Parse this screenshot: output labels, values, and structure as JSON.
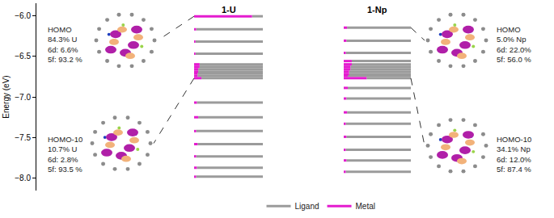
{
  "chart_data": {
    "type": "energy_level",
    "y_label": "Energy (eV)",
    "ylim": [
      -8.15,
      -5.85
    ],
    "yticks": [
      {
        "value": -6.0,
        "label": "−6.0"
      },
      {
        "value": -6.5,
        "label": "−6.5"
      },
      {
        "value": -7.0,
        "label": "−7.0"
      },
      {
        "value": -7.5,
        "label": "−7.5"
      },
      {
        "value": -8.0,
        "label": "−8.0"
      }
    ],
    "legend": "bottom",
    "series": [
      {
        "name": "Metal",
        "color": "#e41bcf"
      },
      {
        "name": "Ligand",
        "color": "#9b9b9b"
      }
    ],
    "columns": [
      {
        "name": "1-U",
        "levels": [
          {
            "energy": -6.01,
            "metal_percent": 84.3
          },
          {
            "energy": -6.17,
            "metal_percent": 3
          },
          {
            "energy": -6.32,
            "metal_percent": 2
          },
          {
            "energy": -6.47,
            "metal_percent": 2
          },
          {
            "energy": -6.6,
            "metal_percent": 8
          },
          {
            "energy": -6.63,
            "metal_percent": 8
          },
          {
            "energy": -6.66,
            "metal_percent": 6
          },
          {
            "energy": -6.69,
            "metal_percent": 6
          },
          {
            "energy": -6.71,
            "metal_percent": 5
          },
          {
            "energy": -6.74,
            "metal_percent": 5
          },
          {
            "energy": -6.77,
            "metal_percent": 10.7
          },
          {
            "energy": -7.07,
            "metal_percent": 4
          },
          {
            "energy": -7.25,
            "metal_percent": 6
          },
          {
            "energy": -7.42,
            "metal_percent": 3
          },
          {
            "energy": -7.58,
            "metal_percent": 5
          },
          {
            "energy": -7.73,
            "metal_percent": 3
          },
          {
            "energy": -7.87,
            "metal_percent": 4
          },
          {
            "energy": -7.98,
            "metal_percent": 3
          }
        ],
        "panels": [
          {
            "level": 0,
            "title": "HOMO",
            "lines": [
              "84.3% U",
              "6d: 6.6%",
              "5f: 93.2 %"
            ]
          },
          {
            "level": 10,
            "title": "HOMO-10",
            "lines": [
              "10.7% U",
              "6d: 2.8%",
              "5f: 93.5 %"
            ]
          }
        ]
      },
      {
        "name": "1-Np",
        "levels": [
          {
            "energy": -6.15,
            "metal_percent": 5.0
          },
          {
            "energy": -6.31,
            "metal_percent": 4
          },
          {
            "energy": -6.46,
            "metal_percent": 3
          },
          {
            "energy": -6.56,
            "metal_percent": 12
          },
          {
            "energy": -6.6,
            "metal_percent": 12
          },
          {
            "energy": -6.63,
            "metal_percent": 10
          },
          {
            "energy": -6.66,
            "metal_percent": 10
          },
          {
            "energy": -6.69,
            "metal_percent": 8
          },
          {
            "energy": -6.72,
            "metal_percent": 8
          },
          {
            "energy": -6.74,
            "metal_percent": 6
          },
          {
            "energy": -6.77,
            "metal_percent": 34.1
          },
          {
            "energy": -6.89,
            "metal_percent": 6
          },
          {
            "energy": -7.02,
            "metal_percent": 4
          },
          {
            "energy": -7.19,
            "metal_percent": 5
          },
          {
            "energy": -7.33,
            "metal_percent": 3
          },
          {
            "energy": -7.49,
            "metal_percent": 4
          },
          {
            "energy": -7.65,
            "metal_percent": 3
          },
          {
            "energy": -7.78,
            "metal_percent": 4
          },
          {
            "energy": -7.92,
            "metal_percent": 3
          }
        ],
        "panels": [
          {
            "level": 0,
            "title": "HOMO",
            "lines": [
              "5.0% Np",
              "6d: 22.0%",
              "5f: 56.0 %"
            ]
          },
          {
            "level": 10,
            "title": "HOMO-10",
            "lines": [
              "34.1% Np",
              "6d: 12.0%",
              "5f: 87.4 %"
            ]
          }
        ]
      }
    ]
  }
}
